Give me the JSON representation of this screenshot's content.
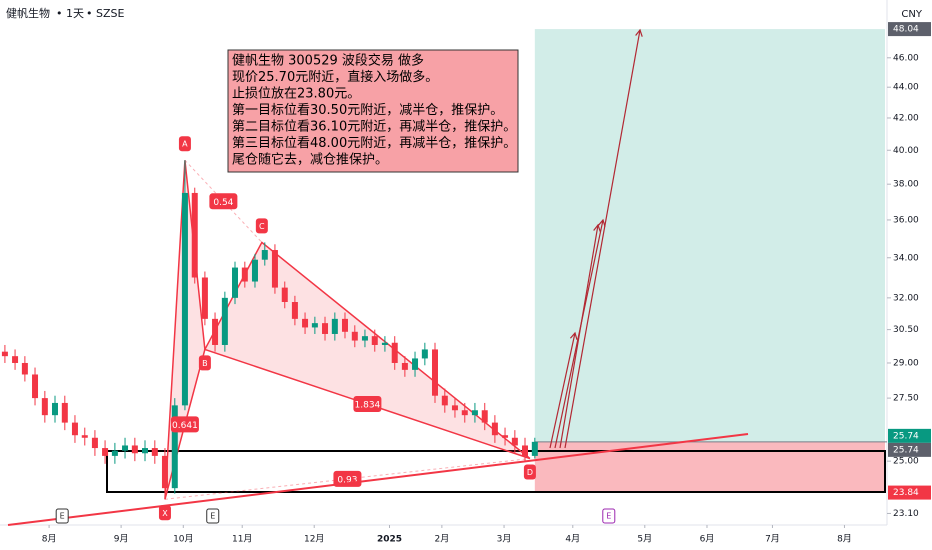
{
  "header": {
    "symbol": "健帆生物",
    "interval": "1天",
    "exchange": "SZSE",
    "currency": "CNY"
  },
  "chart_data": {
    "type": "candlestick",
    "log_scale": true,
    "xlim": [
      0,
      271
    ],
    "ylim": [
      22.7,
      50.2
    ],
    "yticks": [
      {
        "value": 23.1,
        "label": "23.10"
      },
      {
        "value": 25,
        "label": "25.00"
      },
      {
        "value": 27.5,
        "label": "27.50"
      },
      {
        "value": 29,
        "label": "29.00"
      },
      {
        "value": 30.5,
        "label": "30.50"
      },
      {
        "value": 32,
        "label": "32.00"
      },
      {
        "value": 34,
        "label": "34.00"
      },
      {
        "value": 36,
        "label": "36.00"
      },
      {
        "value": 38,
        "label": "38.00"
      },
      {
        "value": 40,
        "label": "40.00"
      },
      {
        "value": 42,
        "label": "42.00"
      },
      {
        "value": 44,
        "label": "44.00"
      },
      {
        "value": 46,
        "label": "46.00"
      }
    ],
    "xticks": [
      {
        "value": 15,
        "label": "8月"
      },
      {
        "value": 37,
        "label": "9月"
      },
      {
        "value": 56,
        "label": "10月"
      },
      {
        "value": 74,
        "label": "11月"
      },
      {
        "value": 96,
        "label": "12月"
      },
      {
        "value": 119,
        "label": "2025"
      },
      {
        "value": 135,
        "label": "2月"
      },
      {
        "value": 154,
        "label": "3月"
      },
      {
        "value": 175,
        "label": "4月"
      },
      {
        "value": 197,
        "label": "5月"
      },
      {
        "value": 216,
        "label": "6月"
      },
      {
        "value": 236,
        "label": "7月"
      },
      {
        "value": 258,
        "label": "8月"
      }
    ],
    "x": [
      1.5,
      4.6,
      7.6,
      10.7,
      13.7,
      16.8,
      19.8,
      22.9,
      25.9,
      29.0,
      32.1,
      35.1,
      38.2,
      41.2,
      44.3,
      47.3,
      50.4,
      53.4,
      56.5,
      59.5,
      62.6,
      65.7,
      68.7,
      71.8,
      74.8,
      77.9,
      80.9,
      84.0,
      87.0,
      90.1,
      93.2,
      96.2,
      99.3,
      102.3,
      105.4,
      108.4,
      111.5,
      114.5,
      117.6,
      120.6,
      123.7,
      126.8,
      129.8,
      132.9,
      135.9,
      139.0,
      142.0,
      145.1,
      148.1,
      151.2,
      154.3,
      157.3,
      160.4,
      163.4
    ],
    "open": [
      29.5,
      29.3,
      29.0,
      28.5,
      27.5,
      26.8,
      27.3,
      26.5,
      26.0,
      25.9,
      25.5,
      25.2,
      25.4,
      25.6,
      25.3,
      25.5,
      25.2,
      24.0,
      27.2,
      37.5,
      33.0,
      31.0,
      29.8,
      32.0,
      33.5,
      32.8,
      33.9,
      34.4,
      32.5,
      31.8,
      31.0,
      30.6,
      30.8,
      30.3,
      31.0,
      30.4,
      30.0,
      30.2,
      29.8,
      29.9,
      29.0,
      28.7,
      29.2,
      29.6,
      27.6,
      27.2,
      27.0,
      26.8,
      27.0,
      26.5,
      26.0,
      25.9,
      25.6,
      25.2
    ],
    "high": [
      29.8,
      29.6,
      29.3,
      28.8,
      27.8,
      27.6,
      27.6,
      26.8,
      26.3,
      26.2,
      25.8,
      25.7,
      25.9,
      25.9,
      25.8,
      25.8,
      25.5,
      27.5,
      39.4,
      37.8,
      33.3,
      31.3,
      32.3,
      33.8,
      33.8,
      34.2,
      34.8,
      34.7,
      32.8,
      32.1,
      31.3,
      31.1,
      31.1,
      31.3,
      31.3,
      30.7,
      30.5,
      30.5,
      30.2,
      30.2,
      29.3,
      29.5,
      29.9,
      29.9,
      27.9,
      27.5,
      27.3,
      27.3,
      27.3,
      26.8,
      26.3,
      26.2,
      25.9,
      25.9
    ],
    "low": [
      29.0,
      28.7,
      28.2,
      27.2,
      26.5,
      26.5,
      26.2,
      25.7,
      25.6,
      25.2,
      24.9,
      24.9,
      25.1,
      25.0,
      25.0,
      24.9,
      23.6,
      23.8,
      27.0,
      32.7,
      30.7,
      29.5,
      29.5,
      31.7,
      32.5,
      32.5,
      33.6,
      32.2,
      31.5,
      30.7,
      30.3,
      30.3,
      30.0,
      30.0,
      30.1,
      29.7,
      29.7,
      29.5,
      29.5,
      28.7,
      28.4,
      28.4,
      28.9,
      27.3,
      26.9,
      26.7,
      26.5,
      26.5,
      26.2,
      25.7,
      25.6,
      25.3,
      25.0,
      25.1
    ],
    "close": [
      29.3,
      29.0,
      28.5,
      27.5,
      26.8,
      27.3,
      26.5,
      26.0,
      25.9,
      25.5,
      25.2,
      25.4,
      25.6,
      25.3,
      25.5,
      25.2,
      24.0,
      27.2,
      37.5,
      33.0,
      31.0,
      29.8,
      32.0,
      33.5,
      32.8,
      33.9,
      34.4,
      32.5,
      31.8,
      31.0,
      30.6,
      30.8,
      30.3,
      31.0,
      30.4,
      30.0,
      30.2,
      29.8,
      29.9,
      29.0,
      28.7,
      29.2,
      29.6,
      27.6,
      27.2,
      27.0,
      26.8,
      27.0,
      26.5,
      26.0,
      25.9,
      25.6,
      25.2,
      25.74
    ],
    "up_color": "#089981",
    "down_color": "#f23645",
    "annotation": [
      "健帆生物 300529 波段交易 做多",
      "现价25.70元附近，直接入场做多。",
      "止损位放在23.80元。",
      "第一目标位看30.50元附近，减半仓，推保护。",
      "第二目标位看36.10元附近，再减半仓，推保护。",
      "第三目标位看48.00元附近，再减半仓，推保护。",
      "尾仓随它去，减仓推保护。"
    ],
    "pattern": {
      "points": [
        {
          "label": "X",
          "x": 50.4,
          "y": 23.6
        },
        {
          "label": "A",
          "x": 56.5,
          "y": 39.4
        },
        {
          "label": "B",
          "x": 62.6,
          "y": 29.6
        },
        {
          "label": "C",
          "x": 80.0,
          "y": 34.8
        },
        {
          "label": "D",
          "x": 161.9,
          "y": 25.1
        }
      ],
      "ratios": [
        0.641,
        0.54,
        1.834,
        0.93
      ]
    },
    "position": {
      "entry": 25.74,
      "target": 48.04,
      "stop": 23.84
    },
    "last_price": 25.74,
    "events": [
      {
        "label": "E",
        "x": 19
      },
      {
        "label": "E",
        "x": 65
      },
      {
        "label": "E",
        "x": 186
      }
    ]
  }
}
